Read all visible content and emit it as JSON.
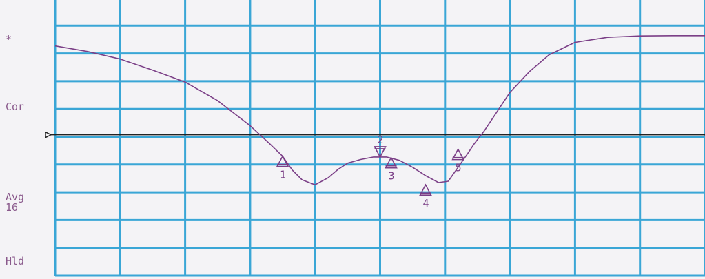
{
  "side_labels": {
    "star": "*",
    "correction": "Cor",
    "averaging": "Avg",
    "avg_count": "16",
    "hold": "Hld"
  },
  "colors": {
    "grid": "#3aa6d6",
    "trace": "#7b3f87",
    "reference_line": "#222222",
    "label": "#8a5a8c",
    "background": "#f4f3f6"
  },
  "chart_data": {
    "type": "line",
    "title": "",
    "xlabel": "",
    "ylabel": "",
    "grid": true,
    "x_divisions": 10,
    "y_divisions": 10,
    "xlim": [
      0,
      10
    ],
    "ylim": [
      0,
      10
    ],
    "reference_level": 5.07,
    "series": [
      {
        "x": [
          0,
          0.5,
          1.0,
          1.5,
          2.0,
          2.5,
          3.0,
          3.3,
          3.5,
          3.65,
          3.8,
          4.0,
          4.2,
          4.35,
          4.5,
          4.7,
          4.9,
          5.1,
          5.3,
          5.5,
          5.7,
          5.9,
          6.05,
          6.2,
          6.35,
          6.45,
          6.6,
          6.8,
          7.0,
          7.3,
          7.6,
          8.0,
          8.5,
          9.0,
          9.5,
          10.0
        ],
        "y": [
          8.27,
          8.07,
          7.8,
          7.4,
          6.97,
          6.3,
          5.4,
          4.75,
          4.3,
          3.8,
          3.45,
          3.27,
          3.52,
          3.82,
          4.05,
          4.18,
          4.27,
          4.27,
          4.15,
          3.9,
          3.6,
          3.35,
          3.4,
          3.9,
          4.4,
          4.75,
          5.2,
          5.9,
          6.6,
          7.35,
          7.95,
          8.4,
          8.58,
          8.63,
          8.64,
          8.64
        ]
      }
    ],
    "markers": [
      {
        "label": "1",
        "x": 3.5,
        "y": 4.3,
        "direction": "up"
      },
      {
        "label": "2",
        "x": 5.0,
        "y": 4.27,
        "direction": "down"
      },
      {
        "label": "3",
        "x": 5.17,
        "y": 4.25,
        "direction": "up"
      },
      {
        "label": "4",
        "x": 5.7,
        "y": 3.27,
        "direction": "up"
      },
      {
        "label": "5",
        "x": 6.2,
        "y": 4.55,
        "direction": "up"
      }
    ]
  }
}
